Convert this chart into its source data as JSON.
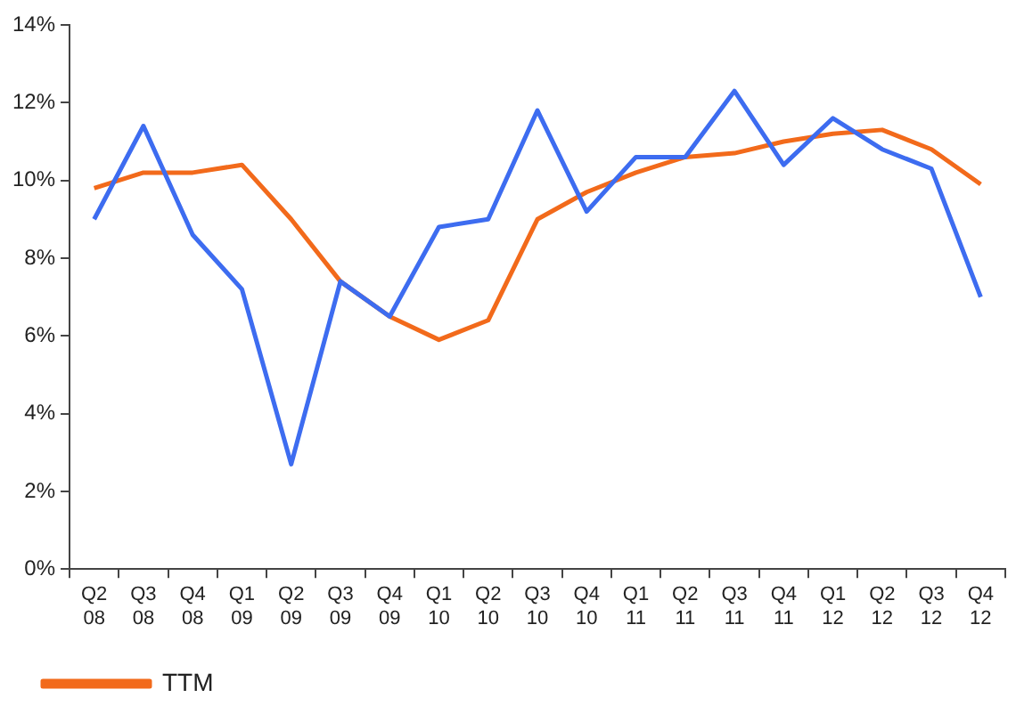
{
  "chart_data": {
    "type": "line",
    "categories": [
      "Q2 08",
      "Q3 08",
      "Q4 08",
      "Q1 09",
      "Q2 09",
      "Q3 09",
      "Q4 09",
      "Q1 10",
      "Q2 10",
      "Q3 10",
      "Q4 10",
      "Q1 11",
      "Q2 11",
      "Q3 11",
      "Q4 11",
      "Q1 12",
      "Q2 12",
      "Q3 12",
      "Q4 12"
    ],
    "series": [
      {
        "color": "#3d6cf0",
        "values": [
          9.0,
          11.4,
          8.6,
          7.2,
          2.7,
          7.4,
          6.5,
          8.8,
          9.0,
          11.8,
          9.2,
          10.6,
          10.6,
          12.3,
          10.4,
          11.6,
          10.8,
          10.3,
          7.0
        ]
      },
      {
        "name": "TTM",
        "color": "#f26a1b",
        "values": [
          9.8,
          10.2,
          10.2,
          10.4,
          9.0,
          7.4,
          6.5,
          5.9,
          6.4,
          9.0,
          9.7,
          10.2,
          10.6,
          10.7,
          11.0,
          11.2,
          11.3,
          10.8,
          9.9
        ]
      }
    ],
    "ylim": [
      0,
      14
    ],
    "yticks": [
      {
        "value": 0,
        "label": "0%"
      },
      {
        "value": 2,
        "label": "2%"
      },
      {
        "value": 4,
        "label": "4%"
      },
      {
        "value": 6,
        "label": "6%"
      },
      {
        "value": 8,
        "label": "8%"
      },
      {
        "value": 10,
        "label": "10%"
      },
      {
        "value": 12,
        "label": "12%"
      },
      {
        "value": 14,
        "label": "14%"
      }
    ],
    "grid": false,
    "legend": "bottom left",
    "marker": "none",
    "line_style": "solid"
  }
}
